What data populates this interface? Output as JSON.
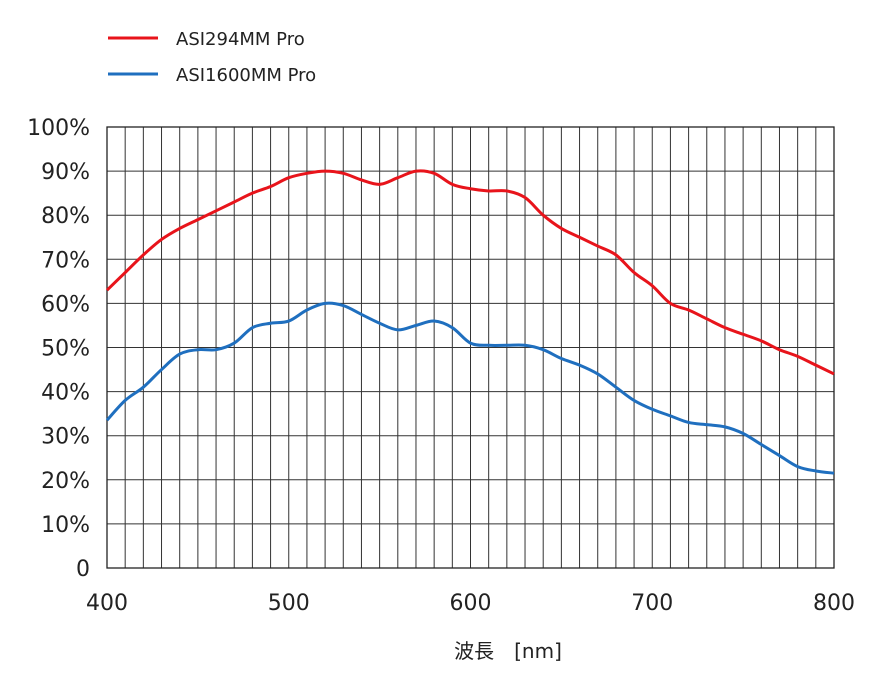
{
  "chart_data": {
    "type": "line",
    "xlabel": "波長　[nm]",
    "ylabel": "",
    "xlim": [
      400,
      800
    ],
    "ylim": [
      0,
      100
    ],
    "x_ticks": [
      "400",
      "500",
      "600",
      "700",
      "800"
    ],
    "y_ticks": [
      "0",
      "10%",
      "20%",
      "30%",
      "40%",
      "50%",
      "60%",
      "70%",
      "80%",
      "90%",
      "100%"
    ],
    "grid": true,
    "legend_position": "top-left",
    "series": [
      {
        "name": "ASI294MM Pro",
        "color": "#e8141b",
        "x": [
          400,
          410,
          420,
          430,
          440,
          450,
          460,
          470,
          480,
          490,
          500,
          510,
          520,
          530,
          540,
          550,
          560,
          570,
          580,
          590,
          600,
          610,
          620,
          630,
          640,
          650,
          660,
          670,
          680,
          690,
          700,
          710,
          720,
          730,
          740,
          750,
          760,
          770,
          780,
          790,
          800
        ],
        "values": [
          63,
          67,
          71,
          74.5,
          77,
          79,
          81,
          83,
          85,
          86.5,
          88.5,
          89.5,
          90,
          89.5,
          88,
          87,
          88.5,
          90,
          89.5,
          87,
          86,
          85.5,
          85.5,
          84,
          80,
          77,
          75,
          73,
          71,
          67,
          64,
          60,
          58.5,
          56.5,
          54.5,
          53,
          51.5,
          49.5,
          48,
          46,
          44
        ]
      },
      {
        "name": "ASI1600MM Pro",
        "color": "#1f6fbf",
        "x": [
          400,
          410,
          420,
          430,
          440,
          450,
          460,
          470,
          480,
          490,
          500,
          510,
          520,
          530,
          540,
          550,
          560,
          570,
          580,
          590,
          600,
          610,
          620,
          630,
          640,
          650,
          660,
          670,
          680,
          690,
          700,
          710,
          720,
          730,
          740,
          750,
          760,
          770,
          780,
          790,
          800
        ],
        "values": [
          33.5,
          38,
          41,
          45,
          48.5,
          49.5,
          49.5,
          51,
          54.5,
          55.5,
          56,
          58.5,
          60,
          59.5,
          57.5,
          55.5,
          54,
          55,
          56,
          54.5,
          51,
          50.5,
          50.5,
          50.5,
          49.5,
          47.5,
          46,
          44,
          41,
          38,
          36,
          34.5,
          33,
          32.5,
          32,
          30.5,
          28,
          25.5,
          23,
          22,
          21.5
        ]
      }
    ]
  }
}
